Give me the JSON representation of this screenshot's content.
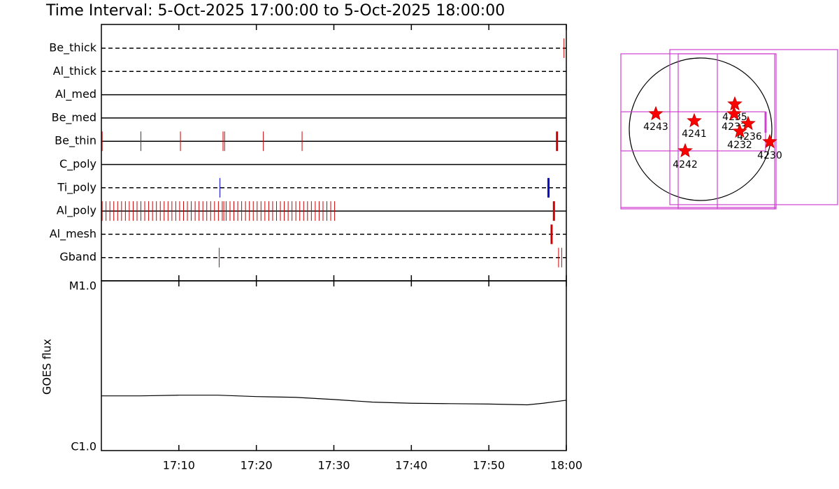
{
  "title": "Time Interval:  5-Oct-2025 17:00:00 to  5-Oct-2025 18:00:00",
  "chart_data": [
    {
      "type": "event",
      "xlim": [
        0,
        60
      ],
      "xticks": [
        10,
        20,
        30,
        40,
        50,
        60
      ],
      "rows": [
        {
          "name": "Be_thick",
          "style": "dashed",
          "color": "#cc0000",
          "events": [
            59.7
          ],
          "bold_events": []
        },
        {
          "name": "Al_thick",
          "style": "dashed",
          "color": "#cc0000",
          "events": [],
          "bold_events": []
        },
        {
          "name": "Al_med",
          "style": "solid",
          "color": "#cc0000",
          "events": [],
          "bold_events": []
        },
        {
          "name": "Be_med",
          "style": "solid",
          "color": "#cc0000",
          "events": [],
          "bold_events": []
        },
        {
          "name": "Be_thin",
          "style": "solid",
          "color": "#cc0000",
          "events": [
            0.1,
            5.1,
            10.2,
            15.7,
            15.9,
            20.9,
            25.9
          ],
          "bold_events": [
            58.8
          ]
        },
        {
          "name": "C_poly",
          "style": "solid",
          "color": "#cc0000",
          "events": [],
          "bold_events": []
        },
        {
          "name": "Ti_poly",
          "style": "dashed",
          "color": "#0000cc",
          "events": [
            15.3
          ],
          "bold_events": [
            57.7
          ]
        },
        {
          "name": "Al_poly",
          "style": "solid",
          "color": "#cc0000",
          "events": [
            0.1,
            0.6,
            1.1,
            1.6,
            2.1,
            2.6,
            3.1,
            3.6,
            4.1,
            4.6,
            5.1,
            5.6,
            6.1,
            6.6,
            7.1,
            7.6,
            8.1,
            8.6,
            9.1,
            9.6,
            10.1,
            10.6,
            11.1,
            11.6,
            12.1,
            12.6,
            13.1,
            13.6,
            14.1,
            14.6,
            15.1,
            15.6,
            15.8,
            16.1,
            16.6,
            17.1,
            17.6,
            18.1,
            18.6,
            19.1,
            19.6,
            20.1,
            20.6,
            21.1,
            21.6,
            22.1,
            22.6,
            23.1,
            23.6,
            24.1,
            24.6,
            25.1,
            25.6,
            26.1,
            26.6,
            27.1,
            27.6,
            28.1,
            28.6,
            29.1,
            29.6,
            30.1
          ],
          "bold_events": [
            58.4
          ]
        },
        {
          "name": "Al_mesh",
          "style": "dashed",
          "color": "#cc0000",
          "events": [],
          "bold_events": [
            58.1
          ]
        },
        {
          "name": "Gband",
          "style": "dashed",
          "color": "#cc0000",
          "events": [
            15.2,
            59.0,
            59.4
          ],
          "bold_events": []
        }
      ]
    },
    {
      "type": "line",
      "ylabel": "GOES flux",
      "log": true,
      "xlim": [
        0,
        60
      ],
      "xticks": [
        {
          "value": 10,
          "label": "17:10"
        },
        {
          "value": 20,
          "label": "17:20"
        },
        {
          "value": 30,
          "label": "17:30"
        },
        {
          "value": 40,
          "label": "17:40"
        },
        {
          "value": 50,
          "label": "17:50"
        },
        {
          "value": 60,
          "label": "18:00"
        }
      ],
      "ylim": [
        1e-06,
        1e-05
      ],
      "yticks": [
        {
          "value": 1e-06,
          "label": "C1.0"
        },
        {
          "value": 1e-05,
          "label": "M1.0"
        }
      ],
      "x": [
        0,
        5,
        10,
        15,
        20,
        25,
        30,
        35,
        40,
        45,
        50,
        55,
        57,
        60
      ],
      "values": [
        2.1e-06,
        2.1e-06,
        2.12e-06,
        2.12e-06,
        2.08e-06,
        2.06e-06,
        2e-06,
        1.93e-06,
        1.9e-06,
        1.89e-06,
        1.88e-06,
        1.86e-06,
        1.9e-06,
        1.98e-06
      ],
      "color": "#000000"
    },
    {
      "type": "map",
      "labels": [
        "4243",
        "4241",
        "4235",
        "4233",
        "4236",
        "4232",
        "4230",
        "4242"
      ]
    }
  ]
}
